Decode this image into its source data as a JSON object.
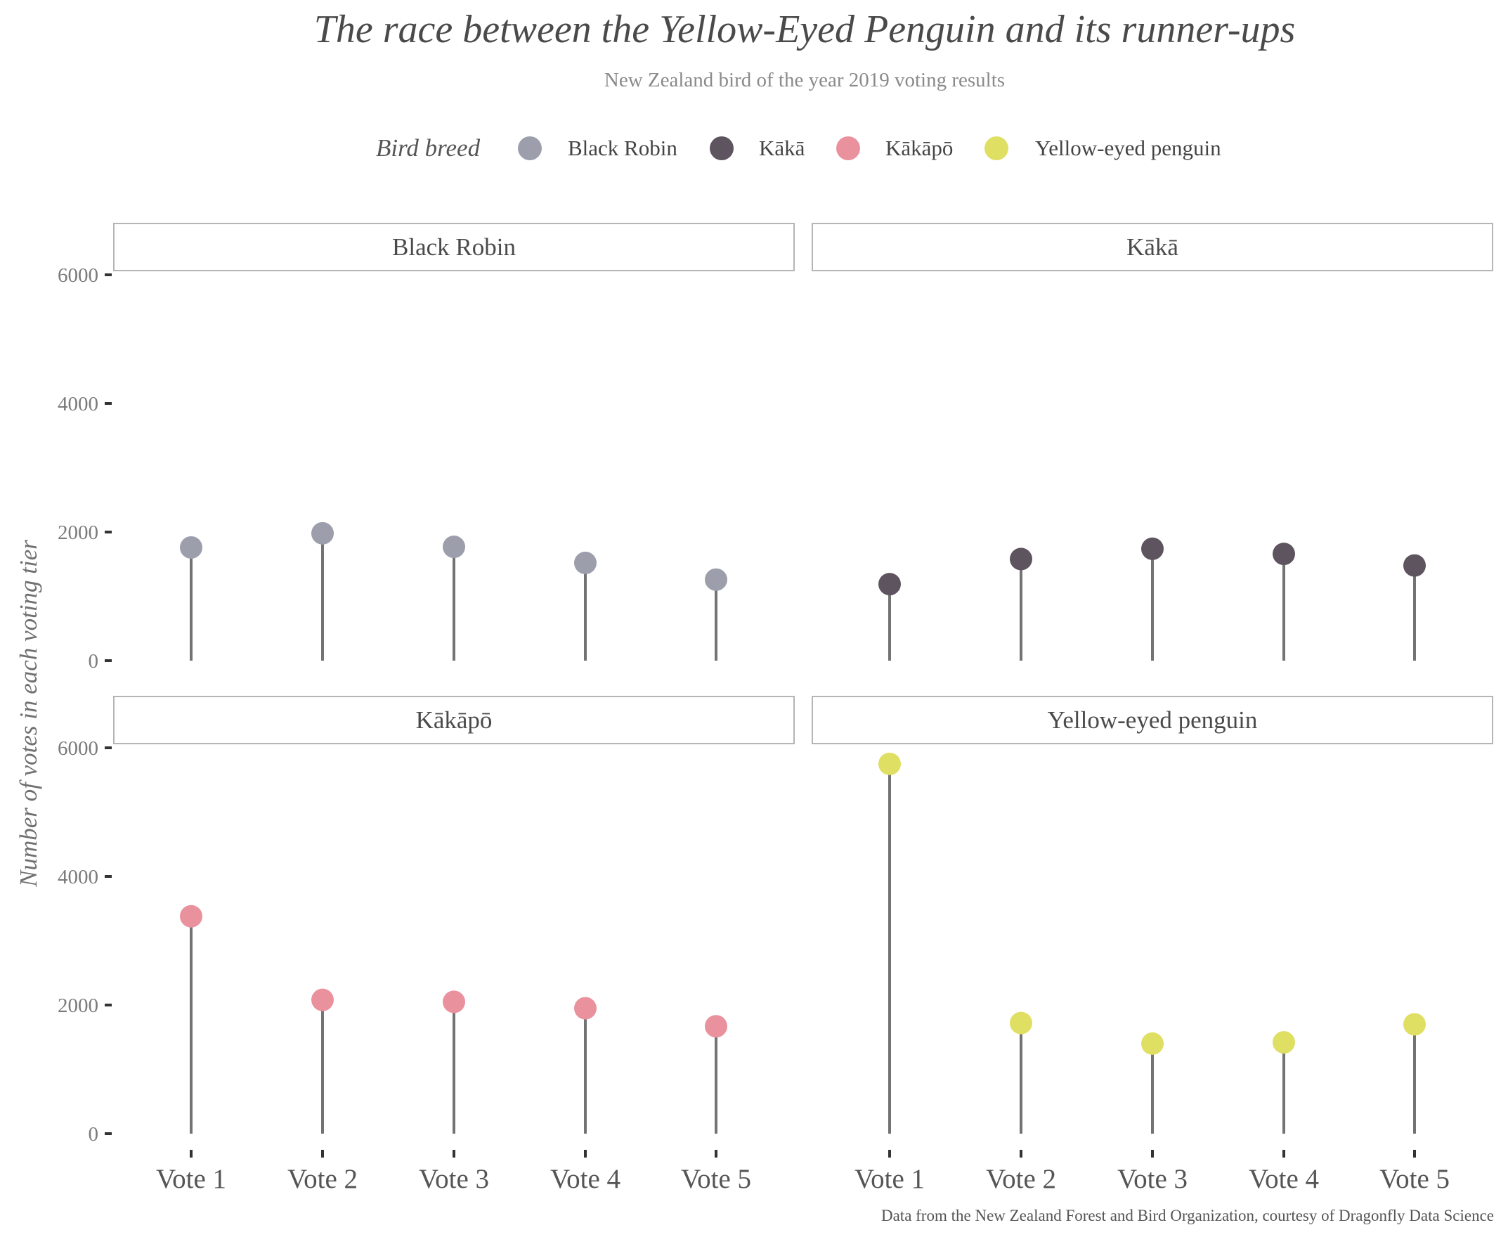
{
  "chart_data": {
    "type": "lollipop",
    "title": "The race between the Yellow-Eyed Penguin and its runner-ups",
    "subtitle": "New Zealand bird of the year 2019 voting results",
    "caption": "Data from the New Zealand Forest and Bird Organization, courtesy of Dragonfly Data Science",
    "ylabel": "Number of votes in each voting tier",
    "xlabel": "",
    "legend_title": "Bird breed",
    "legend_position": "top",
    "grid": false,
    "ylim": [
      0,
      6000
    ],
    "yticks": [
      0,
      2000,
      4000,
      6000
    ],
    "categories": [
      "Vote 1",
      "Vote 2",
      "Vote 3",
      "Vote 4",
      "Vote 5"
    ],
    "series": [
      {
        "name": "Black Robin",
        "color": "#9c9fab",
        "values": [
          1760,
          1980,
          1770,
          1520,
          1260
        ]
      },
      {
        "name": "Kākā",
        "color": "#5e545f",
        "values": [
          1190,
          1580,
          1740,
          1660,
          1480
        ]
      },
      {
        "name": "Kākāpō",
        "color": "#ea919e",
        "values": [
          3380,
          2080,
          2050,
          1950,
          1670
        ]
      },
      {
        "name": "Yellow-eyed penguin",
        "color": "#dfdf64",
        "values": [
          5750,
          1720,
          1400,
          1420,
          1700
        ]
      }
    ],
    "stem_color": "#737373"
  }
}
